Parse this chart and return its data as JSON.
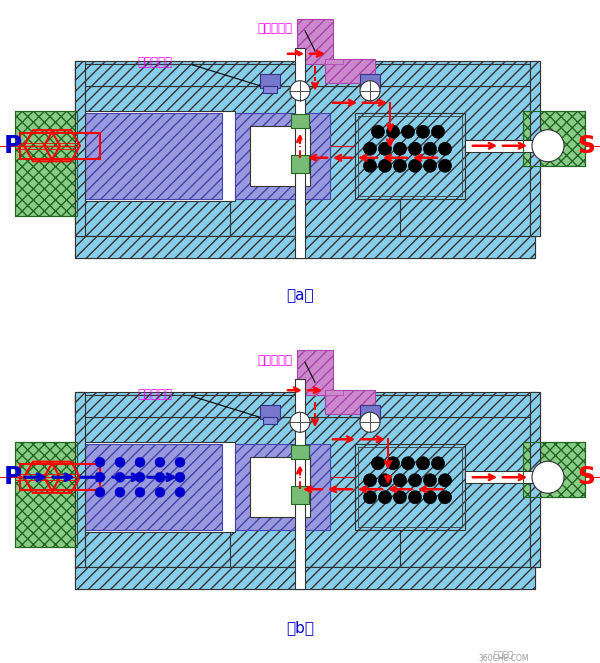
{
  "fig_width": 6.0,
  "fig_height": 6.63,
  "dpi": 100,
  "bg_color": "#ffffff",
  "cyan_fill": "#87CEEB",
  "blue_fill": "#9999DD",
  "purple_fill": "#CC88CC",
  "green_fill": "#88CC88",
  "red_color": "#FF0000",
  "blue_color": "#0000CC",
  "magenta_color": "#FF00FF",
  "black_color": "#000000",
  "dark_gray": "#333333",
  "label_a": "（a）",
  "label_b": "（b）",
  "label_P": "P",
  "label_S": "S",
  "label_odd": "奇数档气管",
  "label_even": "偶数档气管",
  "watermark1": "卡车之家",
  "watermark2": "360CHE.COM"
}
